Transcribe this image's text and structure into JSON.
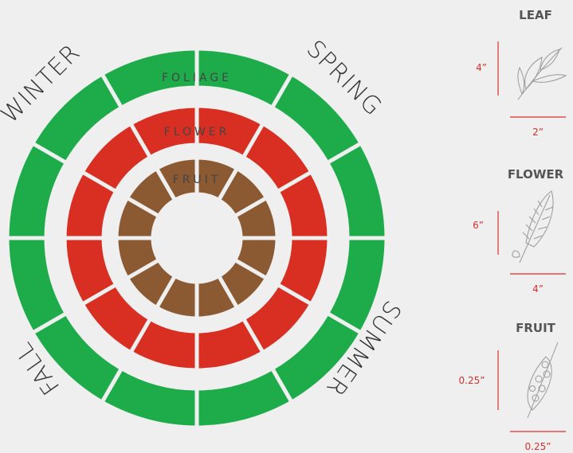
{
  "seasons": [
    "WINTER",
    "SPRING",
    "SUMMER",
    "FALL"
  ],
  "rings": [
    "FOLIAGE",
    "FLOWER",
    "FRUIT"
  ],
  "specimens": [
    {
      "title": "LEAF",
      "height": "4”",
      "width": "2”"
    },
    {
      "title": "FLOWER",
      "height": "6”",
      "width": "4”"
    },
    {
      "title": "FRUIT",
      "height": "0.25”",
      "width": "0.25”"
    }
  ]
}
